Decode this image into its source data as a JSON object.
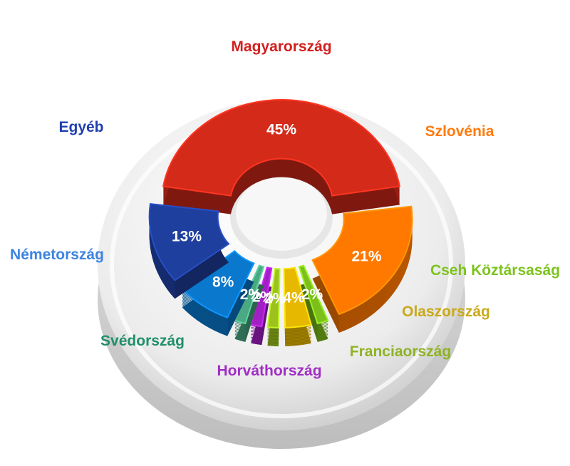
{
  "chart_data": {
    "type": "pie",
    "title": "",
    "unit": "%",
    "categories": [
      "Magyarország",
      "Szlovénia",
      "Cseh Köztársaság",
      "Olaszország",
      "Franciaország",
      "Horváthország",
      "Svédország",
      "Németország",
      "Egyéb"
    ],
    "values": [
      45,
      21,
      2,
      4,
      2,
      2,
      2,
      8,
      13
    ],
    "value_labels": [
      "45%",
      "21%",
      "2%",
      "4%",
      "2%",
      "2%",
      "2%",
      "8%",
      "13%"
    ],
    "colors": [
      "#d42a1a",
      "#ff7800",
      "#7cbf1a",
      "#e6b800",
      "#9cc21e",
      "#a21fc4",
      "#4aa882",
      "#0a78cc",
      "#1f3f9e"
    ],
    "label_colors": [
      "#d21f1f",
      "#ff7b0f",
      "#7dc31d",
      "#c9a91a",
      "#8fb325",
      "#a12ec4",
      "#1f8f6a",
      "#3d84e0",
      "#1f3fb0"
    ],
    "legend": "labels placed next to each slice"
  }
}
